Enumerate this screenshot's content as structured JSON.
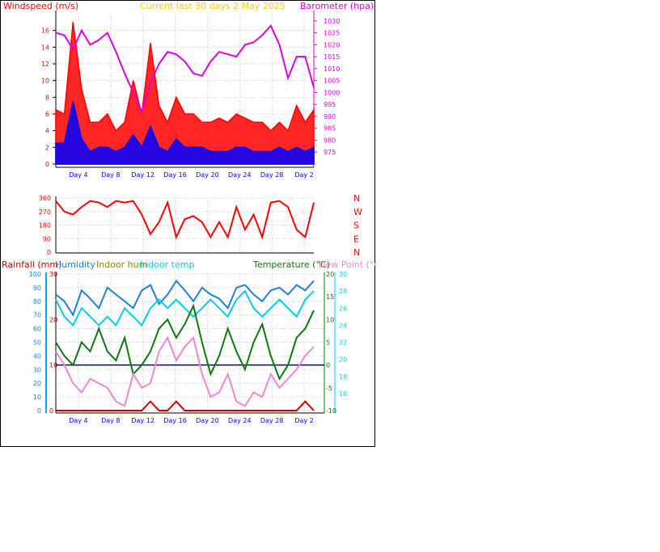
{
  "header": {
    "windspeed_label": "Windspeed (m/s)",
    "title": "Current last 30 days 2 May 2025",
    "barometer_label": "Barometer (hpa)"
  },
  "lower_header": {
    "rainfall": "Rainfall (mm)",
    "humidity": "Humidity",
    "indoor_hum": "Indoor hum",
    "indoor_temp": "Indoor temp",
    "temperature": "Temperature (°C)",
    "dew_point": "Dew Point (°C)"
  },
  "x_ticks": [
    "Day 4",
    "Day 8",
    "Day 12",
    "Day 16",
    "Day 20",
    "Day 24",
    "Day 28",
    "Day 2"
  ],
  "colors": {
    "wind_gust": "#ff0000",
    "wind_avg": "#0000ff",
    "barometer": "#dd00dd",
    "direction": "#ff0000",
    "rainfall": "#cc0000",
    "humidity": "#1e7fe0",
    "indoor_temp": "#00ccee",
    "temperature": "#117711",
    "dew_point": "#ee88cc",
    "zero_line": "#000088"
  },
  "chart_data": [
    {
      "type": "line",
      "name": "wind_and_pressure",
      "x": [
        1,
        2,
        3,
        4,
        5,
        6,
        7,
        8,
        9,
        10,
        11,
        12,
        13,
        14,
        15,
        16,
        17,
        18,
        19,
        20,
        21,
        22,
        23,
        24,
        25,
        26,
        27,
        28,
        29,
        30,
        31
      ],
      "series": [
        {
          "name": "Gust",
          "axis": "left",
          "values": [
            6.5,
            6,
            17,
            9,
            5,
            5,
            6,
            4,
            5,
            10,
            6,
            14.5,
            7,
            5,
            8,
            6,
            6,
            5,
            5,
            5.5,
            5,
            6,
            5.5,
            5,
            5,
            4,
            5,
            4,
            7,
            5,
            6.5
          ]
        },
        {
          "name": "Wind speed",
          "axis": "left",
          "values": [
            2.5,
            2.5,
            7.5,
            3,
            1.5,
            2,
            2,
            1.5,
            2,
            3.5,
            2,
            4.5,
            2,
            1.5,
            3,
            2,
            2,
            2,
            1.5,
            1.5,
            1.5,
            2,
            2,
            1.5,
            1.5,
            1.5,
            2,
            1.5,
            2,
            1.5,
            2
          ]
        },
        {
          "name": "Barometer",
          "axis": "right",
          "values": [
            1025,
            1024,
            1018,
            1026,
            1020,
            1022,
            1025,
            1017,
            1008,
            1000,
            992,
            1004,
            1012,
            1017,
            1016,
            1013,
            1008,
            1007,
            1013,
            1017,
            1016,
            1015,
            1020,
            1021,
            1024,
            1028,
            1020,
            1006,
            1015,
            1015,
            1002
          ]
        }
      ],
      "x_tick_labels": [
        "Day 4",
        "Day 8",
        "Day 12",
        "Day 16",
        "Day 20",
        "Day 24",
        "Day 28",
        "Day 2"
      ],
      "y_left_ticks": [
        0,
        2,
        4,
        6,
        8,
        10,
        12,
        14,
        16
      ],
      "y_left_range": [
        0,
        18
      ],
      "y_right_ticks": [
        975,
        980,
        985,
        990,
        995,
        1000,
        1005,
        1010,
        1015,
        1020,
        1025,
        1030
      ],
      "y_right_range": [
        970,
        1033
      ],
      "grid": true
    },
    {
      "type": "line",
      "name": "wind_direction",
      "x": [
        1,
        2,
        3,
        4,
        5,
        6,
        7,
        8,
        9,
        10,
        11,
        12,
        13,
        14,
        15,
        16,
        17,
        18,
        19,
        20,
        21,
        22,
        23,
        24,
        25,
        26,
        27,
        28,
        29,
        30,
        31
      ],
      "series": [
        {
          "name": "Direction",
          "values": [
            340,
            270,
            250,
            300,
            340,
            330,
            300,
            340,
            330,
            340,
            250,
            120,
            200,
            330,
            100,
            220,
            240,
            200,
            100,
            200,
            100,
            300,
            150,
            250,
            100,
            330,
            340,
            300,
            150,
            100,
            330
          ]
        }
      ],
      "y_left_ticks": [
        0,
        90,
        180,
        270,
        360
      ],
      "y_right_labels": [
        "N",
        "W",
        "S",
        "E",
        "N"
      ],
      "y_range": [
        0,
        360
      ],
      "grid": true
    },
    {
      "type": "line",
      "name": "temperature_humidity_rain",
      "x": [
        1,
        2,
        3,
        4,
        5,
        6,
        7,
        8,
        9,
        10,
        11,
        12,
        13,
        14,
        15,
        16,
        17,
        18,
        19,
        20,
        21,
        22,
        23,
        24,
        25,
        26,
        27,
        28,
        29,
        30,
        31
      ],
      "series": [
        {
          "name": "Rainfall",
          "axis": "rain",
          "values": [
            0,
            0,
            0,
            0,
            0,
            0,
            0,
            0,
            0,
            0,
            0,
            2,
            0,
            0,
            2,
            0,
            0,
            0,
            0,
            0,
            0,
            0,
            0,
            0,
            0,
            0,
            0,
            0,
            0,
            2,
            0
          ]
        },
        {
          "name": "Humidity",
          "axis": "humidity",
          "values": [
            85,
            80,
            70,
            88,
            82,
            75,
            90,
            85,
            80,
            75,
            88,
            92,
            78,
            85,
            95,
            88,
            80,
            90,
            85,
            82,
            75,
            90,
            92,
            85,
            80,
            88,
            90,
            85,
            92,
            88,
            95
          ]
        },
        {
          "name": "Indoor temp",
          "axis": "indoor",
          "values": [
            27,
            25,
            24,
            26,
            25,
            24,
            25,
            24,
            26,
            25,
            24,
            26,
            27,
            26,
            27,
            26,
            25,
            26,
            27,
            26,
            25,
            27,
            28,
            26,
            25,
            26,
            27,
            26,
            25,
            27,
            28
          ]
        },
        {
          "name": "Temperature",
          "axis": "temp",
          "values": [
            5,
            2,
            0,
            5,
            3,
            8,
            3,
            1,
            6,
            -2,
            0,
            3,
            8,
            10,
            6,
            9,
            13,
            5,
            -2,
            2,
            8,
            3,
            -1,
            5,
            9,
            2,
            -3,
            0,
            6,
            8,
            12
          ]
        },
        {
          "name": "Dew point",
          "axis": "temp",
          "values": [
            3,
            0,
            -4,
            -6,
            -3,
            -4,
            -5,
            -8,
            -9,
            -2,
            -5,
            -4,
            3,
            6,
            1,
            4,
            6,
            -2,
            -7,
            -6,
            -2,
            -8,
            -9,
            -6,
            -7,
            -2,
            -5,
            -3,
            -1,
            2,
            4
          ]
        }
      ],
      "x_tick_labels": [
        "Day 4",
        "Day 8",
        "Day 12",
        "Day 16",
        "Day 20",
        "Day 24",
        "Day 28",
        "Day 2"
      ],
      "y_rain_ticks": [
        0,
        10,
        20,
        30
      ],
      "y_humidity_ticks": [
        0,
        10,
        20,
        30,
        40,
        50,
        60,
        70,
        80,
        90,
        100
      ],
      "y_temp_ticks": [
        -10,
        -5,
        0,
        5,
        10,
        15,
        20
      ],
      "y_indoor_ticks": [
        16,
        18,
        20,
        22,
        24,
        26,
        28,
        30
      ],
      "grid": true
    }
  ]
}
